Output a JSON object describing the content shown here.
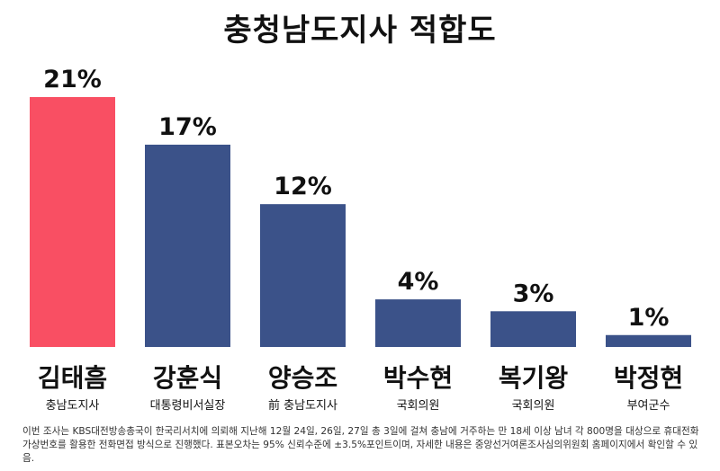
{
  "title": "충청남도지사 적합도",
  "footnote": "이번 조사는 KBS대전방송총국이 한국리서치에 의뢰해 지난해 12월 24일, 26일, 27일 총 3일에 걸쳐 충남에 거주하는 만 18세 이상 남녀 각 800명을 대상으로 휴대전화 가상번호를 활용한 전화면접 방식으로 진행했다. 표본오차는 95% 신뢰수준에 ±3.5%포인트이며, 자세한 내용은 중앙선거여론조사심의위원회 홈페이지에서 확인할 수 있음.",
  "colors": {
    "highlight": "#F94F63",
    "default": "#3B5289"
  },
  "chart_data": {
    "type": "bar",
    "title": "충청남도지사 적합도",
    "categories": [
      "김태흠",
      "강훈식",
      "양승조",
      "박수현",
      "복기왕",
      "박정현"
    ],
    "subtitles": [
      "충남도지사",
      "대통령비서실장",
      "前 충남도지사",
      "국회의원",
      "국회의원",
      "부여군수"
    ],
    "values": [
      21,
      17,
      12,
      4,
      3,
      1
    ],
    "value_labels": [
      "21%",
      "17%",
      "12%",
      "4%",
      "3%",
      "1%"
    ],
    "highlight_index": 0,
    "ylim": [
      0,
      21
    ],
    "grid": false,
    "legend": "none"
  }
}
